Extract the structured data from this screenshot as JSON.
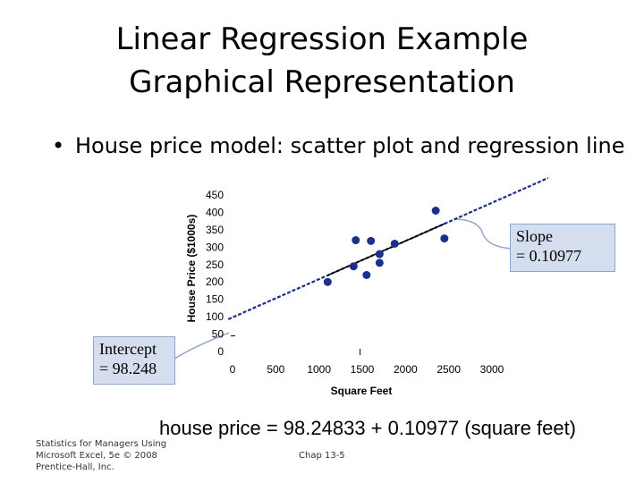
{
  "slide": {
    "title_line1": "Linear Regression Example",
    "title_line2": "Graphical Representation",
    "bullet_glyph": "•",
    "bullet_text": "House price model:  scatter plot and regression line",
    "slope_line1": "Slope",
    "slope_line2": "= 0.10977",
    "intercept_line1": "Intercept",
    "intercept_line2": "= 98.248",
    "equation": "house price = 98.24833 + 0.10977 (square feet)",
    "footer_left_line1": "Statistics for Managers Using",
    "footer_left_line2": "Microsoft Excel, 5e © 2008",
    "footer_left_line3": "Prentice-Hall, Inc.",
    "footer_center": "Chap 13-5"
  },
  "colors": {
    "points": "#1c2f8a",
    "dashed_line": "#1c2f8a",
    "fit_line": "#000000",
    "callout_fill": "#d4deee"
  },
  "chart_data": {
    "type": "scatter",
    "xlabel": "Square Feet",
    "ylabel": "House Price ($1000s)",
    "xlim": [
      0,
      3000
    ],
    "ylim": [
      0,
      450
    ],
    "x_ticks": [
      "0",
      "500",
      "1000",
      "1500",
      "2000",
      "2500",
      "3000"
    ],
    "y_ticks": [
      "0",
      "50",
      "100",
      "150",
      "200",
      "250",
      "300",
      "350",
      "400",
      "450"
    ],
    "grid": false,
    "points": [
      {
        "x": 1100,
        "y": 200
      },
      {
        "x": 1400,
        "y": 245
      },
      {
        "x": 1425,
        "y": 320
      },
      {
        "x": 1550,
        "y": 220
      },
      {
        "x": 1600,
        "y": 318
      },
      {
        "x": 1700,
        "y": 255
      },
      {
        "x": 1700,
        "y": 280
      },
      {
        "x": 1875,
        "y": 310
      },
      {
        "x": 2350,
        "y": 405
      },
      {
        "x": 2450,
        "y": 325
      }
    ],
    "regression": {
      "intercept": 98.24833,
      "slope": 0.10977
    },
    "fit_segment_x": [
      1100,
      2450
    ],
    "dashed_segment_x": [
      -50,
      3650
    ]
  }
}
